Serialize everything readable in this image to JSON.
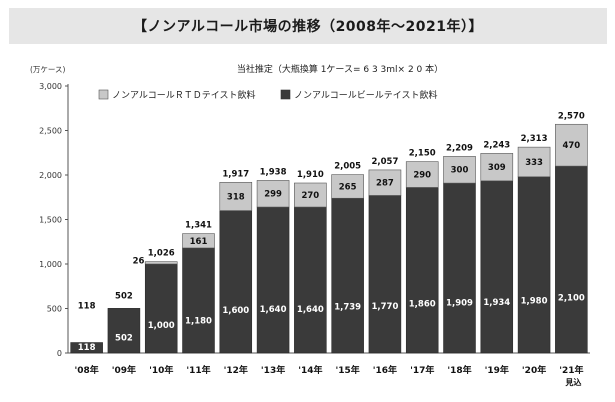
{
  "header": {
    "title": "【ノンアルコール市場の推移（2008年～2021年）】"
  },
  "chart_data": {
    "type": "bar",
    "stacked": true,
    "note": "当社推定（大瓶換算 1ケース= 6 3 3ml× 2 0 本）",
    "yunit": "(万ケース)",
    "ylim": [
      0,
      3000
    ],
    "yticks": [
      "0",
      "500",
      "1,000",
      "1,500",
      "2,000",
      "2,500",
      "3,000"
    ],
    "grid": false,
    "legend_position": "top-left",
    "categories": [
      "'08年",
      "'09年",
      "'10年",
      "'11年",
      "'12年",
      "'13年",
      "'14年",
      "'15年",
      "'16年",
      "'17年",
      "'18年",
      "'19年",
      "'20年",
      "'21年"
    ],
    "category_sublabels": [
      "",
      "",
      "",
      "",
      "",
      "",
      "",
      "",
      "",
      "",
      "",
      "",
      "",
      "見込"
    ],
    "series": [
      {
        "name": "ノンアルコールビールテイスト飲料",
        "color": "#3a3a3a",
        "values": [
          118,
          502,
          1000,
          1180,
          1600,
          1640,
          1640,
          1739,
          1770,
          1860,
          1909,
          1934,
          1980,
          2100
        ],
        "labels": [
          "118",
          "502",
          "1,000",
          "1,180",
          "1,600",
          "1,640",
          "1,640",
          "1,739",
          "1,770",
          "1,860",
          "1,909",
          "1,934",
          "1,980",
          "2,100"
        ]
      },
      {
        "name": "ノンアルコールＲＴＤテイスト飲料",
        "color": "#c8c8c8",
        "values": [
          0,
          0,
          26,
          161,
          318,
          299,
          270,
          265,
          287,
          290,
          300,
          309,
          333,
          470
        ],
        "labels": [
          "",
          "",
          "",
          "161",
          "318",
          "299",
          "270",
          "265",
          "287",
          "290",
          "300",
          "309",
          "333",
          "470"
        ]
      }
    ],
    "totals": [
      118,
      502,
      1026,
      1341,
      1917,
      1938,
      1910,
      2005,
      2057,
      2150,
      2209,
      2243,
      2313,
      2570
    ],
    "total_labels": [
      "118",
      "502",
      "1,026",
      "1,341",
      "1,917",
      "1,938",
      "1,910",
      "2,005",
      "2,057",
      "2,150",
      "2,209",
      "2,243",
      "2,313",
      "2,570"
    ],
    "standalone_label": {
      "text": "26",
      "category_index": 2
    }
  }
}
